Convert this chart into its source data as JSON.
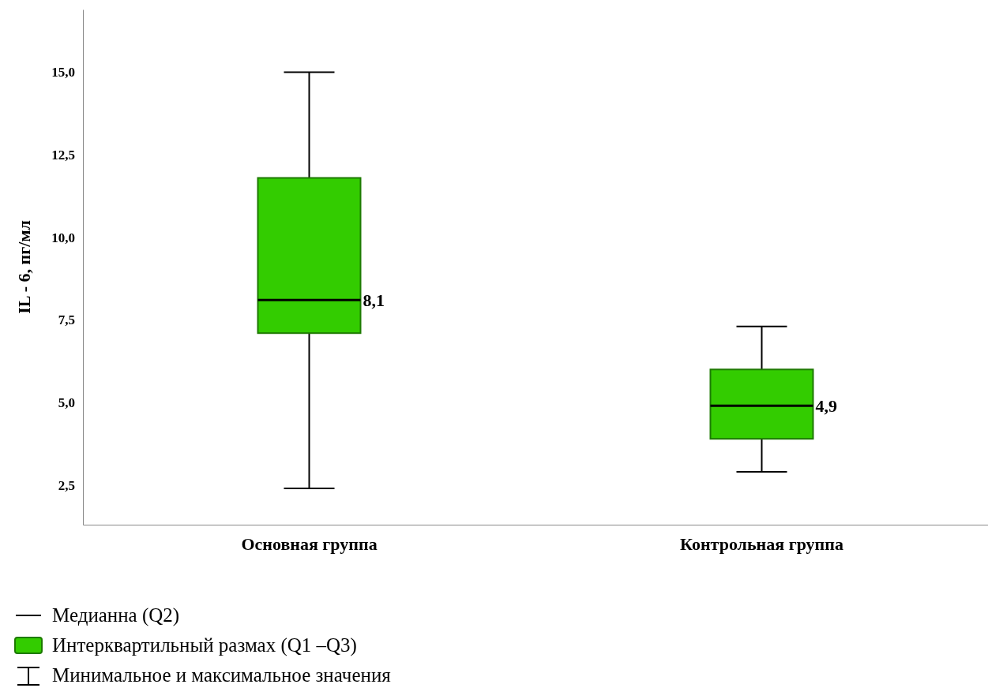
{
  "chart_data": {
    "type": "box",
    "ylabel": "IL - 6, пг/мл",
    "categories": [
      "Основная группа",
      "Контрольная группа"
    ],
    "boxes": [
      {
        "low": 2.4,
        "q1": 7.1,
        "median": 8.1,
        "q3": 11.8,
        "high": 15.0
      },
      {
        "low": 2.9,
        "q1": 3.9,
        "median": 4.9,
        "q3": 6.0,
        "high": 7.3
      }
    ],
    "value_labels": [
      "8,1",
      "4,9"
    ],
    "color": "#33cc00",
    "ylim": [
      1.3,
      16.9
    ],
    "yticks": [
      {
        "value": 2.5,
        "label": "2,5"
      },
      {
        "value": 5,
        "label": "5,0"
      },
      {
        "value": 7.5,
        "label": "7,5"
      },
      {
        "value": 10,
        "label": "10,0"
      },
      {
        "value": 12.5,
        "label": "12,5"
      },
      {
        "value": 15,
        "label": "15,0"
      }
    ],
    "grid": false,
    "annotations": [
      "Медианна (Q2)",
      "Интерквартильный размах (Q1 –Q3)",
      "Минимальное и максимальное значения"
    ]
  }
}
